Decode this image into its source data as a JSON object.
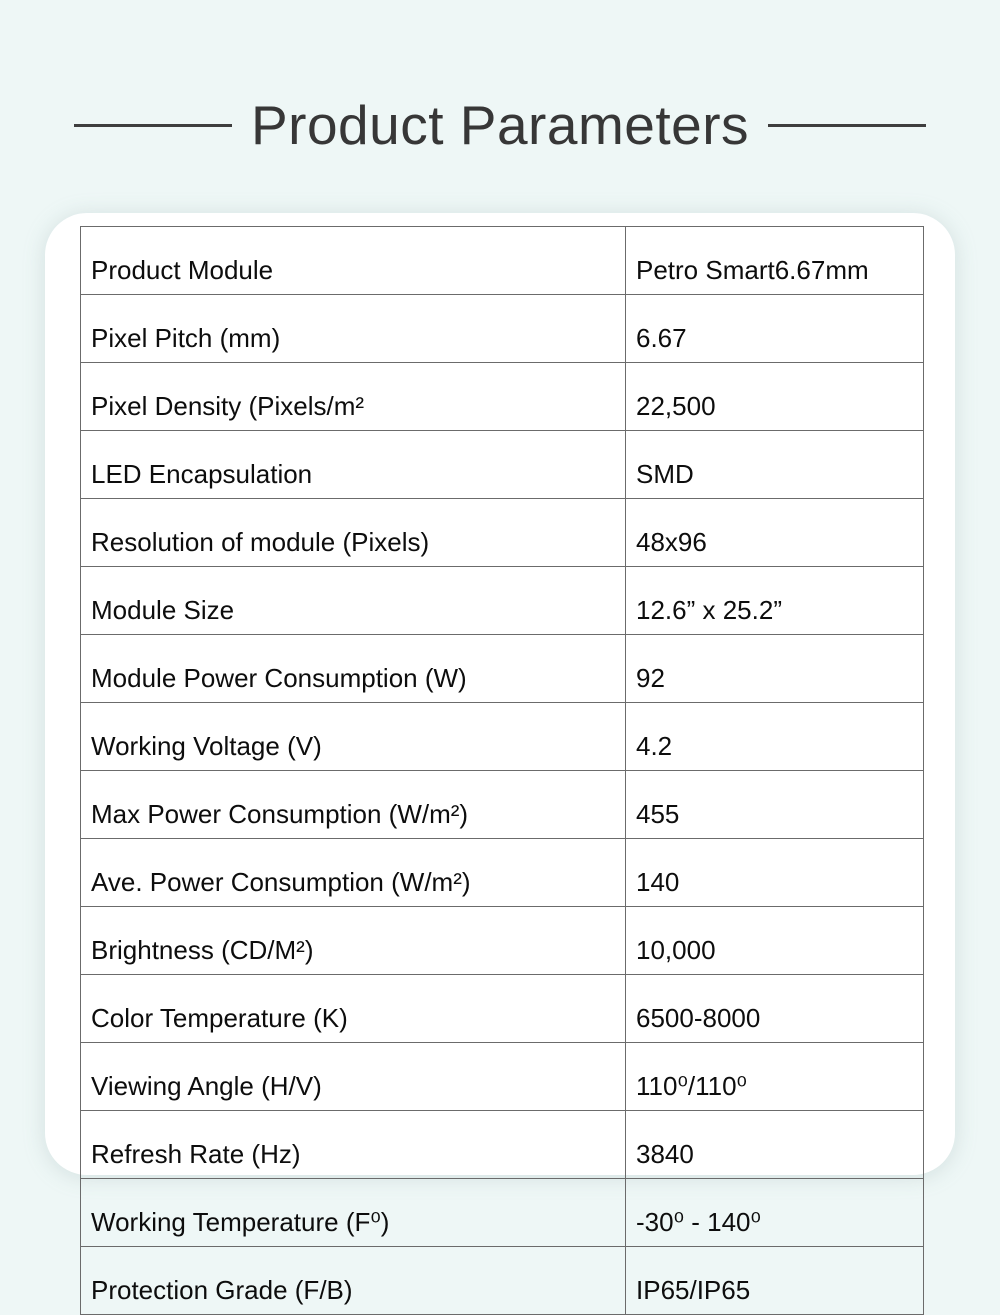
{
  "title": {
    "text": "Product Parameters"
  },
  "table": {
    "rows": [
      {
        "parameter": "Product Module",
        "value": "Petro Smart6.67mm"
      },
      {
        "parameter": "Pixel Pitch (mm)",
        "value": "6.67"
      },
      {
        "parameter": "Pixel Density (Pixels/m²",
        "value": "22,500"
      },
      {
        "parameter": "LED Encapsulation",
        "value": "SMD"
      },
      {
        "parameter": "Resolution of module (Pixels)",
        "value": "48x96"
      },
      {
        "parameter": "Module Size",
        "value": "12.6” x 25.2”"
      },
      {
        "parameter": "Module Power Consumption (W)",
        "value": "92"
      },
      {
        "parameter": "Working Voltage (V)",
        "value": "4.2"
      },
      {
        "parameter": "Max Power Consumption (W/m²)",
        "value": "455"
      },
      {
        "parameter": "Ave. Power Consumption (W/m²)",
        "value": "140"
      },
      {
        "parameter": "Brightness (CD/M²)",
        "value": "10,000"
      },
      {
        "parameter": "Color Temperature (K)",
        "value": "6500-8000"
      },
      {
        "parameter": "Viewing Angle (H/V)",
        "value": "110⁰/110⁰"
      },
      {
        "parameter": "Refresh Rate (Hz)",
        "value": "3840"
      },
      {
        "parameter": "Working Temperature (F⁰)",
        "value": "-30⁰ - 140⁰"
      },
      {
        "parameter": "Protection Grade (F/B)",
        "value": "IP65/IP65"
      }
    ]
  },
  "colors": {
    "page_background": "#eef7f6",
    "card_background": "#ffffff",
    "title_text": "#373737",
    "table_border": "#6b6b6b",
    "cell_text": "#0d0d0d"
  }
}
